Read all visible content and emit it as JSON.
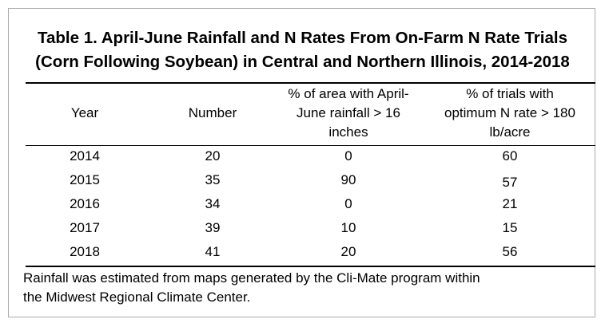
{
  "table": {
    "title_line1": "Table 1. April-June Rainfall and N Rates From On-Farm N Rate Trials",
    "title_line2": "(Corn Following Soybean) in Central and Northern Illinois, 2014-2018",
    "headers": {
      "year": "Year",
      "number": "Number",
      "area": [
        "% of area with April-",
        "June rainfall > 16",
        "inches"
      ],
      "trials": [
        "% of trials with",
        "optimum N rate > 180",
        "lb/acre"
      ]
    },
    "rows": [
      {
        "year": "2014",
        "number": "20",
        "area": "0",
        "trials": "60"
      },
      {
        "year": "2015",
        "number": "35",
        "area": "90",
        "trials": "57"
      },
      {
        "year": "2016",
        "number": "34",
        "area": "0",
        "trials": "21"
      },
      {
        "year": "2017",
        "number": "39",
        "area": "10",
        "trials": "15"
      },
      {
        "year": "2018",
        "number": "41",
        "area": "20",
        "trials": "56"
      }
    ],
    "note": [
      "Rainfall was estimated from maps generated by the Cli-Mate program within",
      "the Midwest Regional Climate Center."
    ]
  }
}
